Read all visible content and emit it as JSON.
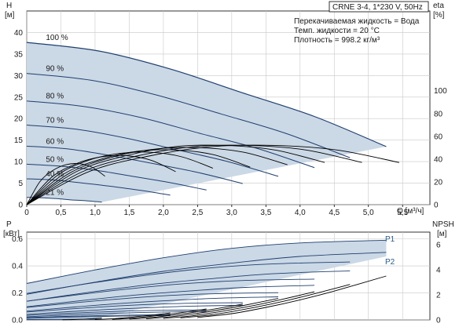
{
  "chart_data": [
    {
      "id": "head",
      "type": "line",
      "title": "CRNE 3-4, 1*230 V, 50Hz",
      "info_lines": [
        "Перекачиваемая жидкость = Вода",
        "Темп. жидкости = 20 °C",
        "Плотность = 998.2 кг/м³"
      ],
      "ylabel_left": [
        "H",
        "[м]"
      ],
      "ylabel_right": [
        "eta",
        "[%]"
      ],
      "xlabel": "Q [м³/ч]",
      "xlim": [
        0,
        5.9
      ],
      "ylim_left": [
        0,
        45
      ],
      "ylim_right": [
        0,
        170
      ],
      "x_ticks": [
        "0",
        "0,5",
        "1,0",
        "1,5",
        "2,0",
        "2,5",
        "3,0",
        "3,5",
        "4,0",
        "4,5",
        "5,0",
        "5,5"
      ],
      "y_ticks_left": [
        "0",
        "5",
        "10",
        "15",
        "20",
        "25",
        "30",
        "35",
        "40"
      ],
      "y_ticks_right": [
        "0",
        "20",
        "40",
        "60",
        "80",
        "100"
      ],
      "grid": true,
      "colors": {
        "curve": "#1f3f6e",
        "envelope": "#cbd8e6",
        "efficiency": "#000000",
        "grid": "#c8c8c8"
      },
      "speed_curves": [
        {
          "label": "100 %",
          "q_max": 5.26,
          "h": [
            37.7,
            35.7,
            31.5,
            26.0,
            20.5,
            13.5
          ]
        },
        {
          "label": "90 %",
          "q_max": 4.73,
          "h": [
            30.5,
            28.9,
            25.5,
            21.1,
            16.6,
            10.9
          ]
        },
        {
          "label": "80 %",
          "q_max": 4.21,
          "h": [
            24.1,
            22.8,
            20.2,
            16.6,
            13.1,
            8.6
          ]
        },
        {
          "label": "70 %",
          "q_max": 3.68,
          "h": [
            18.5,
            17.5,
            15.4,
            12.7,
            10.0,
            6.6
          ]
        },
        {
          "label": "60 %",
          "q_max": 3.16,
          "h": [
            13.6,
            12.9,
            11.3,
            9.4,
            7.4,
            4.9
          ]
        },
        {
          "label": "50 %",
          "q_max": 2.63,
          "h": [
            9.4,
            8.9,
            7.9,
            6.5,
            5.1,
            3.4
          ]
        },
        {
          "label": "40 %",
          "q_max": 2.1,
          "h": [
            6.0,
            5.7,
            5.0,
            4.2,
            3.3,
            2.2
          ]
        },
        {
          "label": "21 %",
          "q_max": 1.1,
          "h": [
            1.7,
            1.6,
            1.4,
            1.1,
            0.9,
            0.6
          ]
        }
      ],
      "efficiency_curves": [
        {
          "scale": 1.0,
          "eta": [
            0,
            29,
            43,
            51,
            52,
            48,
            37
          ]
        },
        {
          "scale": 0.9,
          "eta": [
            0,
            29,
            43,
            51,
            52,
            48,
            37
          ]
        },
        {
          "scale": 0.8,
          "eta": [
            0,
            29,
            43,
            51,
            52,
            48,
            37
          ]
        },
        {
          "scale": 0.7,
          "eta": [
            0,
            28,
            42,
            49,
            50,
            46,
            35
          ]
        },
        {
          "scale": 0.6,
          "eta": [
            0,
            27,
            40,
            47,
            48,
            44,
            33
          ]
        },
        {
          "scale": 0.5,
          "eta": [
            0,
            26,
            39,
            45,
            46,
            42,
            32
          ]
        },
        {
          "scale": 0.4,
          "eta": [
            0,
            24,
            36,
            42,
            43,
            39,
            29
          ]
        },
        {
          "scale": 0.21,
          "eta": [
            0,
            20,
            30,
            35,
            36,
            33,
            25
          ]
        }
      ]
    },
    {
      "id": "power",
      "type": "line",
      "ylabel_left": [
        "P",
        "[кВт]"
      ],
      "ylabel_right": [
        "NPSH",
        "[м]"
      ],
      "xlim": [
        0,
        5.9
      ],
      "ylim_left": [
        0,
        0.65
      ],
      "ylim_right": [
        0,
        7
      ],
      "y_ticks_left": [
        "0.0",
        "0.2",
        "0.4",
        "0.6"
      ],
      "y_ticks_right": [
        "0",
        "2",
        "4",
        "6"
      ],
      "grid": true,
      "series_labels": [
        "P1",
        "P2"
      ],
      "power_curves": [
        {
          "name": "P1",
          "q": [
            0,
            1,
            2,
            3,
            4,
            5.26
          ],
          "p": [
            0.27,
            0.37,
            0.46,
            0.53,
            0.57,
            0.59
          ]
        },
        {
          "name": "P2",
          "q": [
            0,
            1,
            2,
            3,
            4,
            5.26
          ],
          "p": [
            0.19,
            0.28,
            0.36,
            0.42,
            0.47,
            0.5
          ]
        }
      ],
      "npsh_curve": {
        "q": [
          2.5,
          3.0,
          3.5,
          4.0,
          4.5,
          5.26
        ],
        "npsh": [
          0.2,
          0.5,
          1.0,
          1.6,
          2.3,
          3.5
        ]
      }
    }
  ]
}
